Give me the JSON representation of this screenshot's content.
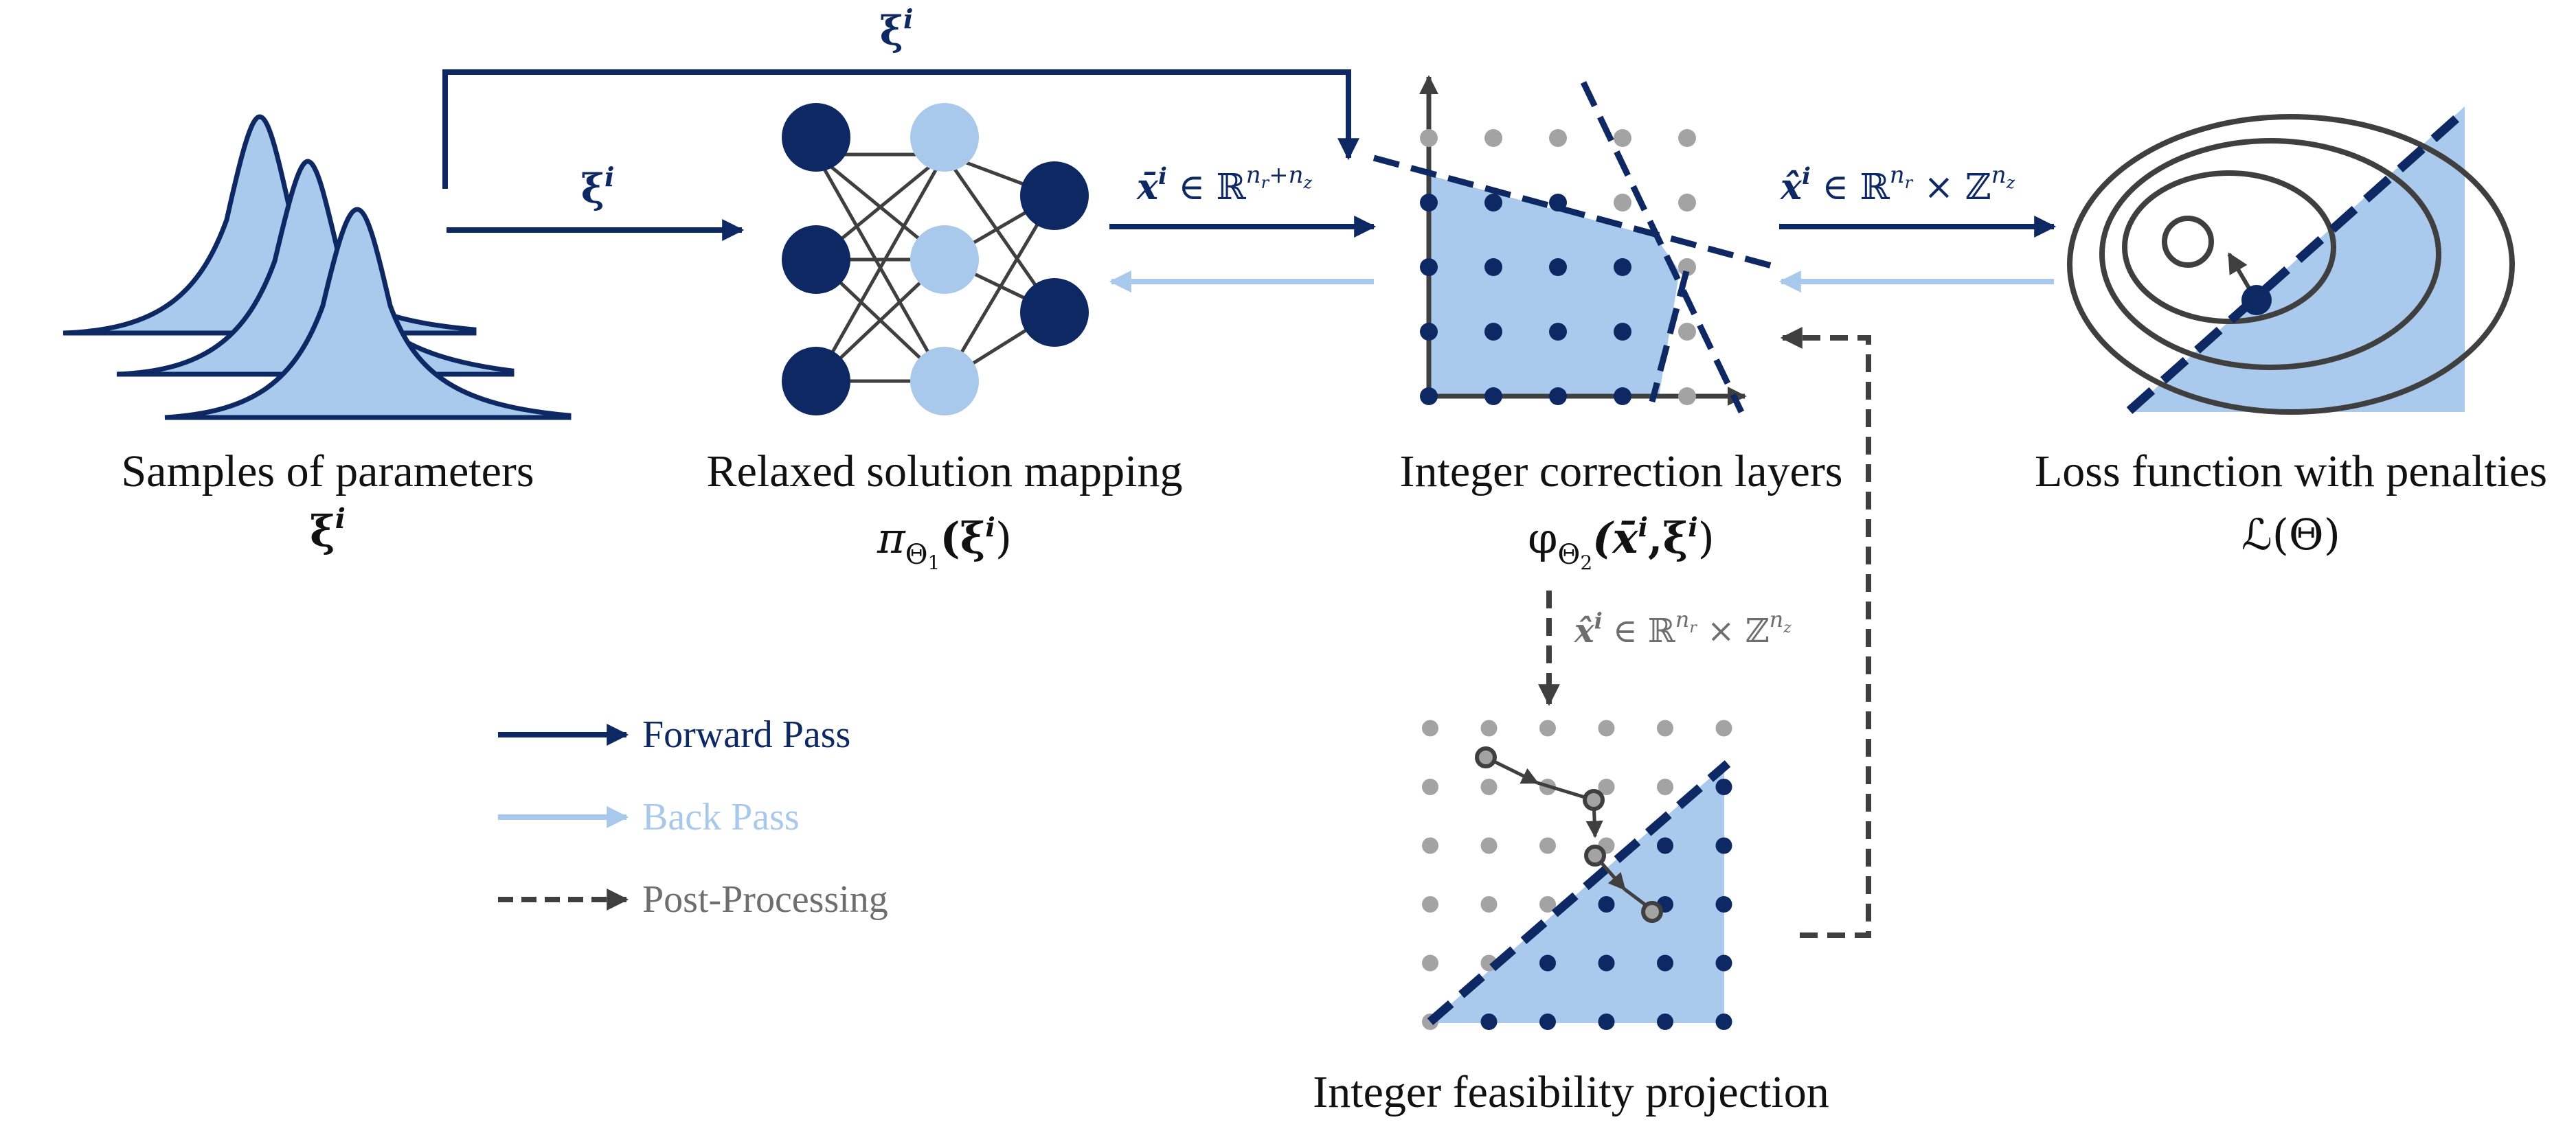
{
  "colors": {
    "dark": "#0d2863",
    "light": "#a8c8ec",
    "fill": "#a9c9ed",
    "grey": "#3f3f3f",
    "dot_grey": "#a3a3a3"
  },
  "stages": {
    "samples": {
      "title": "Samples of parameters",
      "symbol": "ξ",
      "sup": "i"
    },
    "mapping": {
      "title": "Relaxed solution mapping",
      "pi": "π",
      "sub": "Θ",
      "subsub": "1",
      "arg": "(ξ",
      "arg_sup": "i",
      "close": ")"
    },
    "correction": {
      "title": "Integer correction layers",
      "phi": "φ",
      "sub": "Θ",
      "subsub": "2",
      "arg": "(x̄",
      "arg_sup": "i",
      "comma": ",ξ",
      "comma_sup": "i",
      "close": ")"
    },
    "loss": {
      "title": "Loss function with penalties",
      "expr": "ℒ(Θ)"
    },
    "projection": {
      "title": "Integer feasibility projection"
    }
  },
  "arrow_labels": {
    "top_xi": {
      "base": "ξ",
      "sup": "i"
    },
    "mid_xi": {
      "base": "ξ",
      "sup": "i"
    },
    "xbar": {
      "base": "x̄",
      "sup": "i",
      "rel": " ∈ ℝ",
      "exp": "n",
      "exp_sub1": "r",
      "plus": "+n",
      "exp_sub2": "z"
    },
    "xhat": {
      "base": "x̂",
      "sup": "i",
      "rel": " ∈ ℝ",
      "exp": "n",
      "exp_sub1": "r",
      "times": " × ℤ",
      "exp2": "n",
      "exp_sub2": "z"
    },
    "xhat_down": {
      "base": "x̂",
      "sup": "i",
      "rel": " ∈ ℝ",
      "exp": "n",
      "exp_sub1": "r",
      "times": " × ℤ",
      "exp2": "n",
      "exp_sub2": "z"
    }
  },
  "legend": {
    "forward": "Forward Pass",
    "back": "Back Pass",
    "post": "Post-Processing"
  }
}
